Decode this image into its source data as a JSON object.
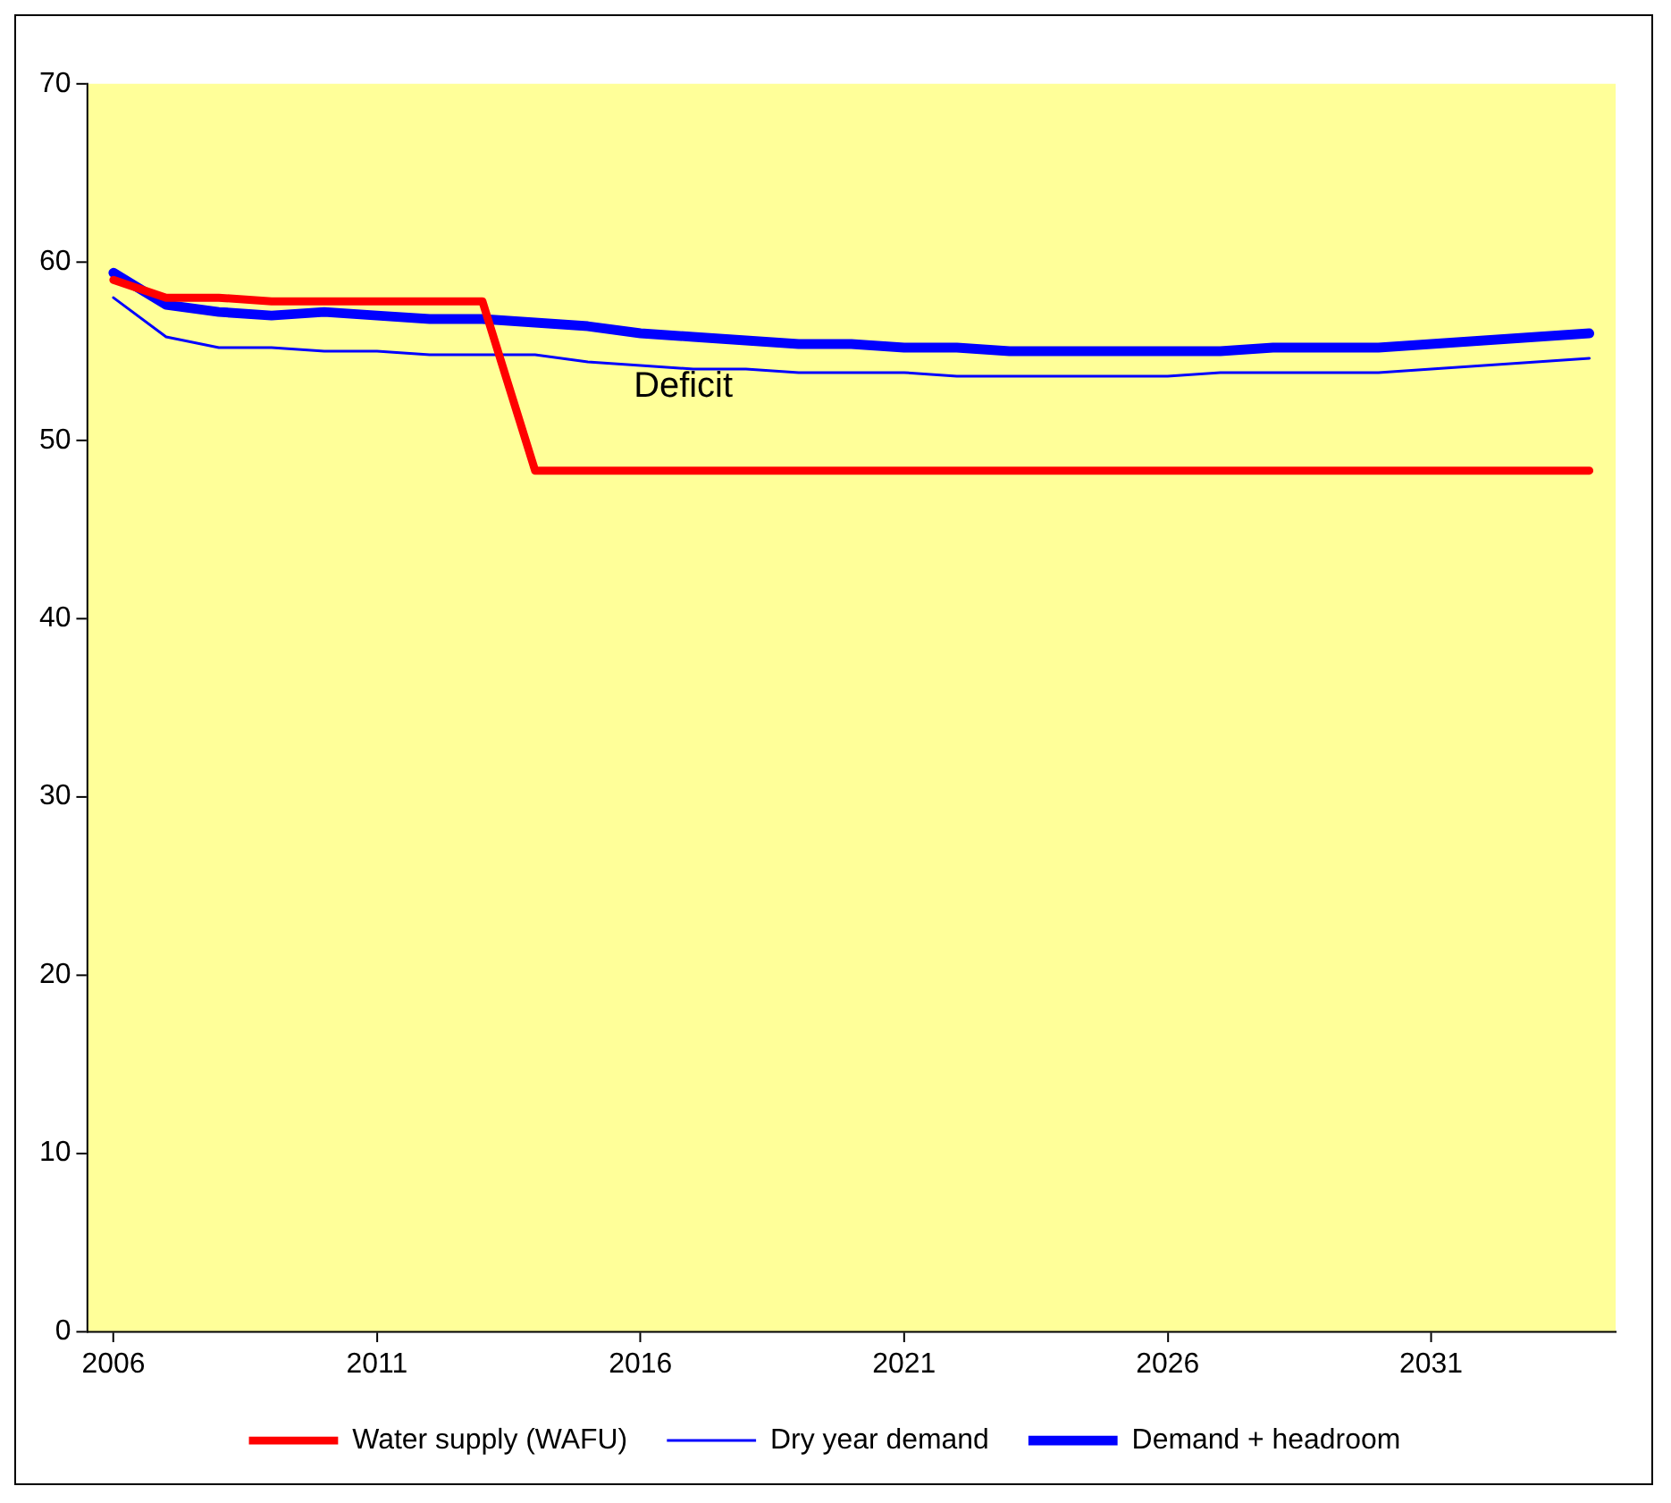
{
  "chart_data": {
    "type": "line",
    "x": [
      2006,
      2007,
      2008,
      2009,
      2010,
      2011,
      2012,
      2013,
      2014,
      2015,
      2016,
      2017,
      2018,
      2019,
      2020,
      2021,
      2022,
      2023,
      2024,
      2025,
      2026,
      2027,
      2028,
      2029,
      2030,
      2031,
      2032,
      2033,
      2034
    ],
    "series": [
      {
        "name": "Water supply (WAFU)",
        "color": "#ff0000",
        "values": [
          59,
          58,
          58,
          57.8,
          57.8,
          57.8,
          57.8,
          57.8,
          48.3,
          48.3,
          48.3,
          48.3,
          48.3,
          48.3,
          48.3,
          48.3,
          48.3,
          48.3,
          48.3,
          48.3,
          48.3,
          48.3,
          48.3,
          48.3,
          48.3,
          48.3,
          48.3,
          48.3,
          48.3
        ]
      },
      {
        "name": "Dry year demand",
        "color": "#0000ff",
        "values": [
          58,
          55.8,
          55.2,
          55.2,
          55,
          55,
          54.8,
          54.8,
          54.8,
          54.4,
          54.2,
          54,
          54,
          53.8,
          53.8,
          53.8,
          53.6,
          53.6,
          53.6,
          53.6,
          53.6,
          53.8,
          53.8,
          53.8,
          53.8,
          54,
          54.2,
          54.4,
          54.6
        ]
      },
      {
        "name": "Demand + headroom",
        "color": "#0000ff",
        "values": [
          59.4,
          57.6,
          57.2,
          57,
          57.2,
          57,
          56.8,
          56.8,
          56.6,
          56.4,
          56,
          55.8,
          55.6,
          55.4,
          55.4,
          55.2,
          55.2,
          55,
          55,
          55,
          55,
          55,
          55.2,
          55.2,
          55.2,
          55.4,
          55.6,
          55.8,
          56
        ]
      }
    ],
    "xlim": [
      2005.5,
      2034.5
    ],
    "xticks": [
      2006,
      2011,
      2016,
      2021,
      2026,
      2031
    ],
    "ylim": [
      0,
      70
    ],
    "yticks": [
      0,
      10,
      20,
      30,
      40,
      50,
      60,
      70
    ],
    "annotations": [
      "Deficit"
    ],
    "grid": false,
    "legend": "bottom",
    "marker": "none",
    "line_style": "solid"
  }
}
